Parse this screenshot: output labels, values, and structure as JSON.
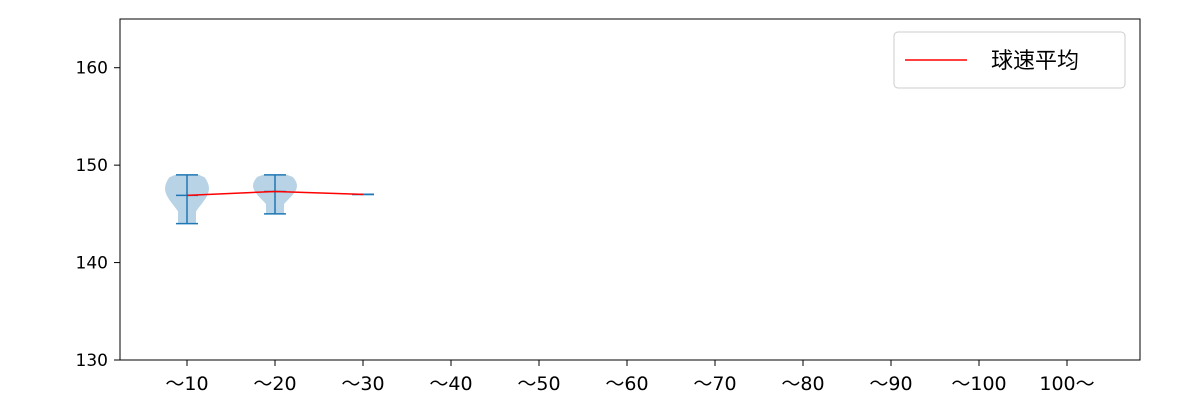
{
  "chart_data": {
    "type": "violin",
    "title": "",
    "xlabel": "",
    "ylabel": "",
    "categories": [
      "～10",
      "～20",
      "～30",
      "～40",
      "～50",
      "～60",
      "～70",
      "～80",
      "～90",
      "～100",
      "100～"
    ],
    "ylim": [
      130,
      165
    ],
    "yticks": [
      130,
      140,
      150,
      160
    ],
    "grid": false,
    "violins": [
      {
        "category": "～10",
        "min": 144,
        "max": 149,
        "mean": 146.9
      },
      {
        "category": "～20",
        "min": 145,
        "max": 149,
        "mean": 147.3
      },
      {
        "category": "～30",
        "min": 147,
        "max": 147,
        "mean": 147.0
      }
    ],
    "series": [
      {
        "name": "球速平均",
        "values": [
          146.9,
          147.3,
          147.0,
          null,
          null,
          null,
          null,
          null,
          null,
          null,
          null
        ],
        "color": "#ff0000"
      }
    ],
    "legend": {
      "position": "top-right",
      "entries": [
        "球速平均"
      ]
    },
    "colors": {
      "violin_fill": "#b9d3e6",
      "violin_edge": "#1f77b4",
      "mean_line": "#ff0000"
    }
  }
}
